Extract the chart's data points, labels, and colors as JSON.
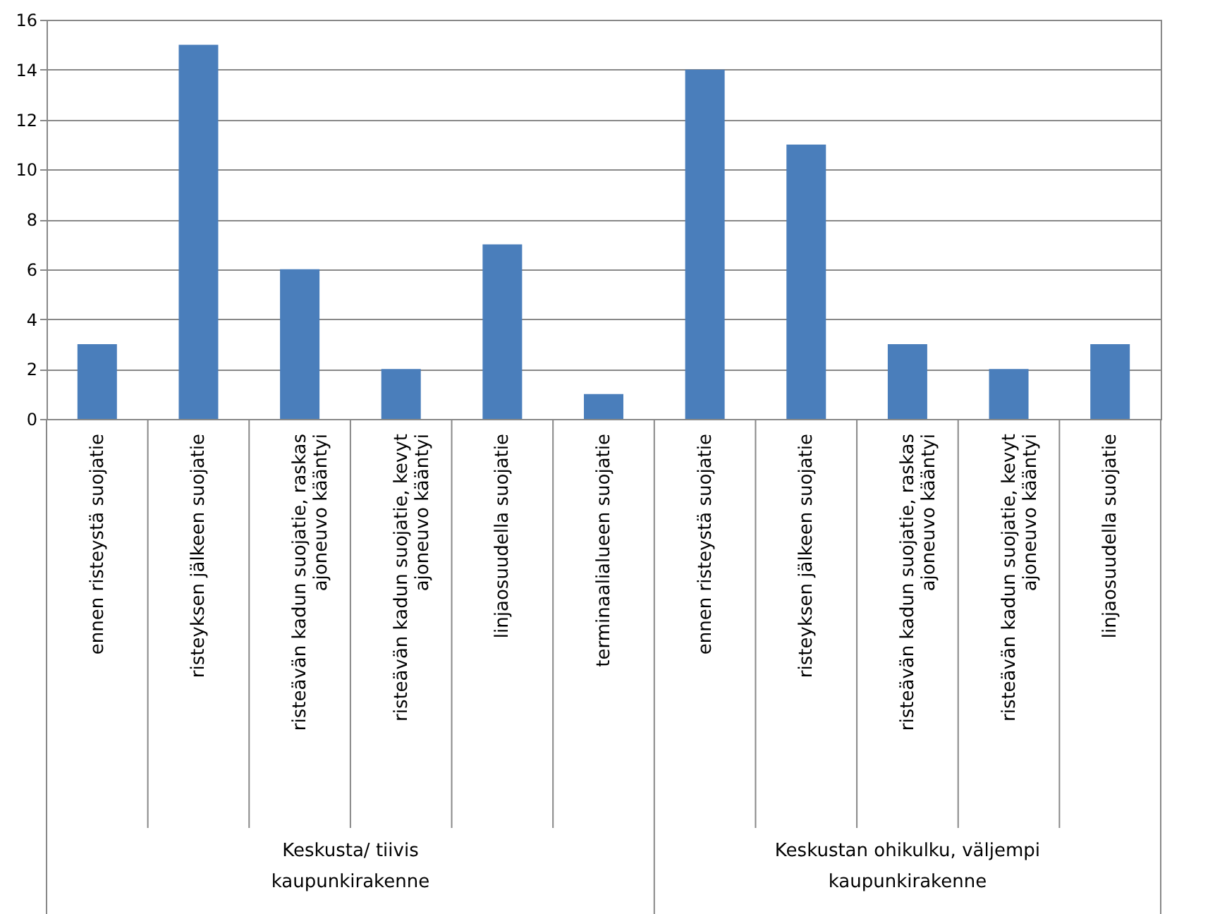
{
  "chart_data": {
    "type": "bar",
    "categories": [
      "ennen risteystä suojatie",
      "risteyksen jälkeen suojatie",
      "risteävän kadun suojatie, raskas ajoneuvo kääntyi",
      "risteävän kadun suojatie, kevyt ajoneuvo kääntyi",
      "linjaosuudella suojatie",
      "terminaalialueen suojatie",
      "ennen risteystä suojatie",
      "risteyksen jälkeen suojatie",
      "risteävän kadun suojatie, raskas ajoneuvo kääntyi",
      "risteävän kadun suojatie, kevyt ajoneuvo kääntyi",
      "linjaosuudella suojatie"
    ],
    "values": [
      3,
      15,
      6,
      2,
      7,
      1,
      14,
      11,
      3,
      2,
      3
    ],
    "color": "#4a7ebb",
    "ylim": [
      0,
      16
    ],
    "yticks": [
      0,
      2,
      4,
      6,
      8,
      10,
      12,
      14,
      16
    ],
    "grid": "y",
    "annotations": [
      "Keskusta/ tiivis kaupunkirakenne",
      "Keskustan ohikulku, väljempi kaupunkirakenne"
    ]
  }
}
